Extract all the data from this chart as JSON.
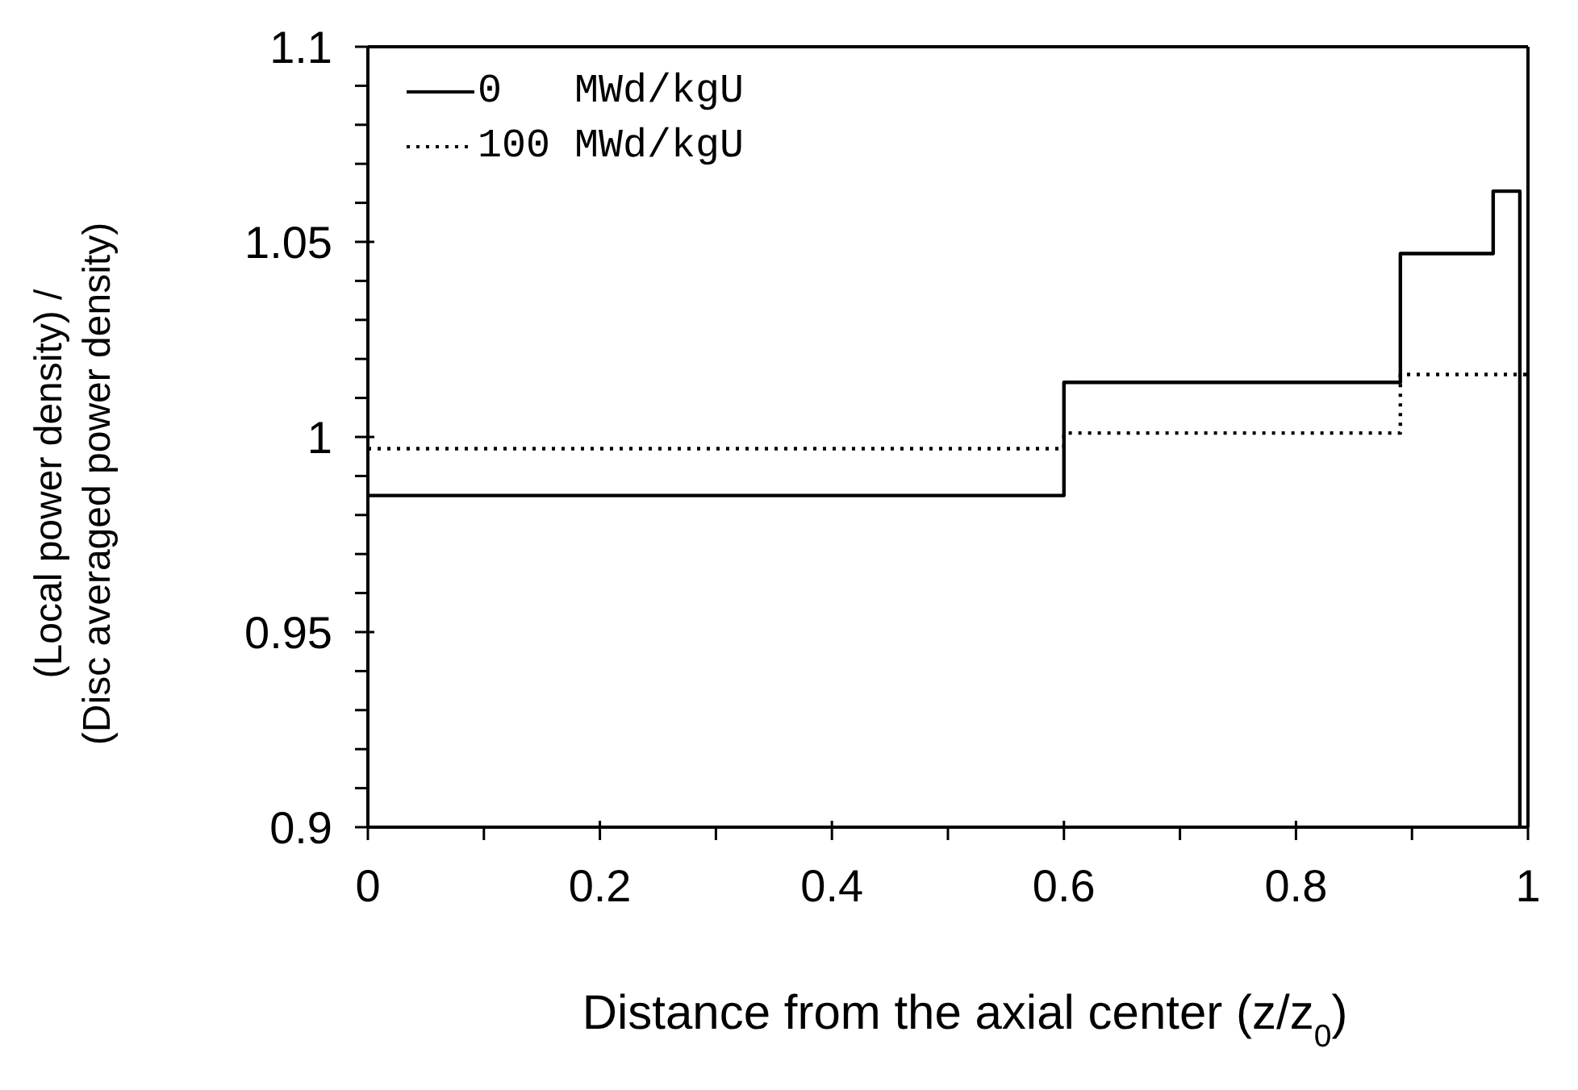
{
  "chart_data": {
    "type": "step",
    "xlabel": "Distance from the axial center (z/z$_{0}$)",
    "ylabel": "(Local power density) /\n(Disc averaged power density)",
    "series": [
      {
        "name": "0   MWd/kgU",
        "color": "#000000",
        "line_style": "solid",
        "x": [
          0,
          0.6,
          0.89,
          0.97,
          0.993
        ],
        "values": [
          0.985,
          1.014,
          1.047,
          1.063,
          0.9
        ]
      },
      {
        "name": "100 MWd/kgU",
        "color": "#000000",
        "line_style": "dotted",
        "x": [
          0,
          0.6,
          0.89,
          1
        ],
        "values": [
          0.997,
          1.001,
          1.016,
          1.016
        ]
      }
    ],
    "xlim": [
      0,
      1
    ],
    "ylim": [
      0.9,
      1.1
    ],
    "xticks": [
      0,
      {
        "value": 0.1,
        "label": null
      },
      {
        "value": 0.2,
        "label": "0.2"
      },
      {
        "value": 0.3,
        "label": null
      },
      {
        "value": 0.4,
        "label": "0.4"
      },
      {
        "value": 0.5,
        "label": null
      },
      {
        "value": 0.6,
        "label": "0.6"
      },
      {
        "value": 0.7,
        "label": null
      },
      {
        "value": 0.8,
        "label": "0.8"
      },
      {
        "value": 0.9,
        "label": null
      },
      1
    ],
    "yticks": [
      {
        "value": 0.9,
        "label": "0.9"
      },
      {
        "value": 0.91,
        "label": null
      },
      {
        "value": 0.92,
        "label": null
      },
      {
        "value": 0.93,
        "label": null
      },
      {
        "value": 0.94,
        "label": null
      },
      {
        "value": 0.95,
        "label": "0.95"
      },
      {
        "value": 0.96,
        "label": null
      },
      {
        "value": 0.97,
        "label": null
      },
      {
        "value": 0.98,
        "label": null
      },
      {
        "value": 0.99,
        "label": null
      },
      1,
      {
        "value": 1.01,
        "label": null
      },
      {
        "value": 1.02,
        "label": null
      },
      {
        "value": 1.03,
        "label": null
      },
      {
        "value": 1.04,
        "label": null
      },
      {
        "value": 1.05,
        "label": "1.05"
      },
      {
        "value": 1.06,
        "label": null
      },
      {
        "value": 1.07,
        "label": null
      },
      {
        "value": 1.08,
        "label": null
      },
      {
        "value": 1.09,
        "label": null
      },
      {
        "value": 1.1,
        "label": "1.1"
      }
    ],
    "legend": "top left",
    "marker": "none"
  }
}
